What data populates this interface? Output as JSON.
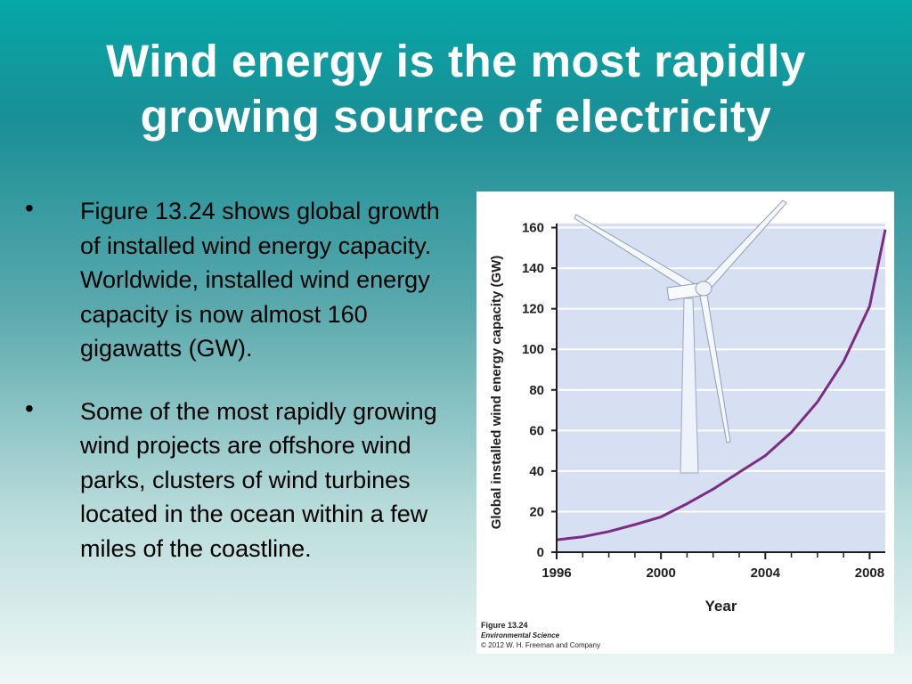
{
  "slide": {
    "title": "Wind energy is the most rapidly growing source of electricity",
    "bullets": [
      "Figure 13.24 shows global growth of installed wind energy capacity. Worldwide, installed wind energy capacity is now almost 160 gigawatts (GW).",
      "Some of the most rapidly growing wind projects are offshore wind parks, clusters of wind turbines located in the ocean within a few miles of the coastline."
    ]
  },
  "figure": {
    "caption_title": "Figure 13.24",
    "caption_book": "Environmental Science",
    "caption_copyright": "© 2012 W. H. Freeman and Company",
    "illustration": "wind-turbine"
  },
  "chart_data": {
    "type": "line",
    "title": "",
    "xlabel": "Year",
    "ylabel": "Global installed wind energy capacity (GW)",
    "xlim": [
      1996,
      2008.6
    ],
    "ylim": [
      0,
      162
    ],
    "x_ticks": [
      1996,
      2000,
      2004,
      2008
    ],
    "x_minor_ticks": [
      1997,
      1998,
      1999,
      2001,
      2002,
      2003,
      2005,
      2006,
      2007
    ],
    "y_ticks": [
      0,
      20,
      40,
      60,
      80,
      100,
      120,
      140,
      160
    ],
    "grid": true,
    "series": [
      {
        "color": "#7b2c84",
        "x": [
          1996,
          1997,
          1998,
          1999,
          2000,
          2001,
          2002,
          2003,
          2004,
          2005,
          2006,
          2007,
          2008,
          2008.6
        ],
        "y": [
          6.1,
          7.6,
          10.2,
          13.6,
          17.4,
          23.9,
          31.1,
          39.4,
          47.6,
          59.1,
          74.1,
          93.9,
          121.2,
          159
        ]
      }
    ],
    "colors": {
      "plot_bg": "#d6e0f2",
      "grid": "#ffffff",
      "axis": "#1e1e1e",
      "line": "#7b2c84"
    }
  }
}
